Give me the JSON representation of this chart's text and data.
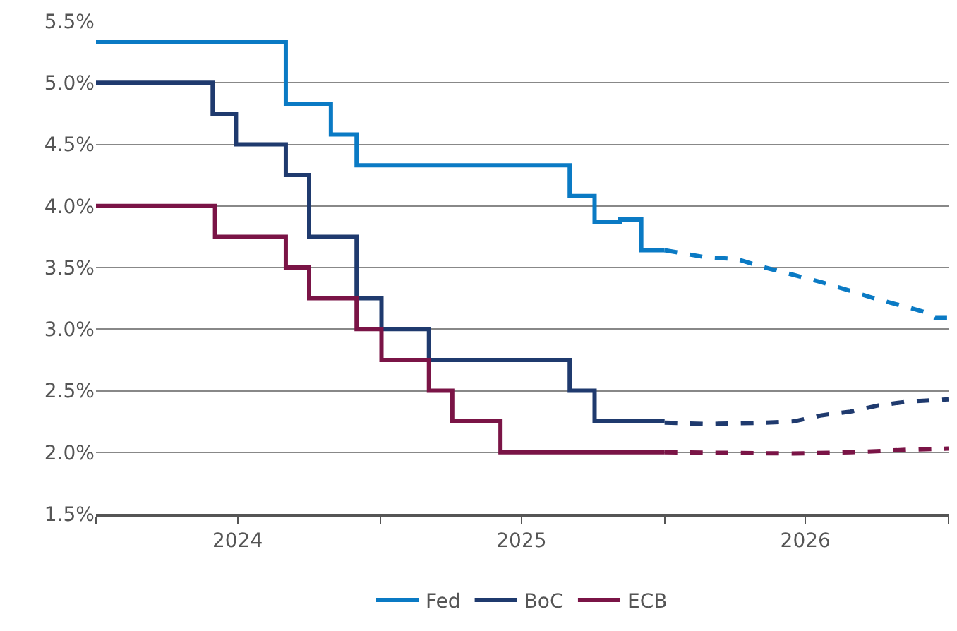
{
  "chart_data": {
    "type": "step",
    "series": [
      {
        "name": "Fed",
        "color": "#0a7ac4",
        "line_style": "solid",
        "x": [
          "2024-01-01",
          "2024-09-01",
          "2024-10-29",
          "2024-12-01",
          "2025-09-01",
          "2025-10-03",
          "2025-11-05",
          "2025-12-02",
          "2026-01-01"
        ],
        "values": [
          5.33,
          4.83,
          4.58,
          4.33,
          4.08,
          3.87,
          3.89,
          3.64,
          3.64
        ]
      },
      {
        "name": "BoC",
        "color": "#1f3a6e",
        "line_style": "solid",
        "x": [
          "2024-01-01",
          "2024-05-30",
          "2024-06-29",
          "2024-09-01",
          "2024-10-01",
          "2024-12-01",
          "2025-01-02",
          "2025-03-04",
          "2025-09-01",
          "2025-10-03",
          "2026-01-01"
        ],
        "values": [
          5.0,
          4.75,
          4.5,
          4.25,
          3.75,
          3.25,
          3.0,
          2.75,
          2.5,
          2.25,
          2.25
        ]
      },
      {
        "name": "ECB",
        "color": "#7a1446",
        "line_style": "solid",
        "x": [
          "2024-01-01",
          "2024-06-02",
          "2024-09-01",
          "2024-10-01",
          "2024-12-01",
          "2025-01-02",
          "2025-03-04",
          "2025-04-03",
          "2025-06-04",
          "2026-01-01"
        ],
        "values": [
          4.0,
          3.75,
          3.5,
          3.25,
          3.0,
          2.75,
          2.5,
          2.25,
          2.0,
          2.0
        ]
      },
      {
        "type": "line",
        "color": "#0a7ac4",
        "line_style": "dashed",
        "x": [
          "2026-01-01",
          "2026-02-26",
          "2026-04-03",
          "2026-05-10",
          "2026-06-16",
          "2026-07-22",
          "2026-08-28",
          "2026-10-03",
          "2026-11-08",
          "2026-12-06",
          "2026-12-15",
          "2027-01-01"
        ],
        "values": [
          3.64,
          3.58,
          3.57,
          3.5,
          3.44,
          3.38,
          3.31,
          3.24,
          3.18,
          3.13,
          3.09,
          3.09
        ]
      },
      {
        "type": "line",
        "color": "#1f3a6e",
        "line_style": "dashed",
        "x": [
          "2026-01-01",
          "2026-02-26",
          "2026-05-10",
          "2026-06-16",
          "2026-07-22",
          "2026-08-28",
          "2026-10-03",
          "2026-11-08",
          "2027-01-01"
        ],
        "values": [
          2.24,
          2.23,
          2.24,
          2.25,
          2.3,
          2.33,
          2.38,
          2.41,
          2.43
        ]
      },
      {
        "type": "line",
        "color": "#7a1446",
        "line_style": "dashed",
        "x": [
          "2026-01-01",
          "2026-06-16",
          "2026-08-28",
          "2026-11-08",
          "2027-01-01"
        ],
        "values": [
          2.0,
          1.99,
          2.0,
          2.02,
          2.03
        ]
      }
    ],
    "xlim": [
      "2024-01-01",
      "2027-01-01"
    ],
    "xticks": [
      {
        "value": "2024-01-01",
        "label": null
      },
      {
        "value": "2024-07-01",
        "label": "2024"
      },
      {
        "value": "2025-01-01",
        "label": null
      },
      {
        "value": "2025-07-01",
        "label": "2025"
      },
      {
        "value": "2026-01-01",
        "label": null
      },
      {
        "value": "2026-07-01",
        "label": "2026"
      },
      {
        "value": "2027-01-01",
        "label": null
      }
    ],
    "ylim": [
      1.5,
      5.5
    ],
    "yticks": [
      {
        "value": 1.5,
        "label": "1.5%"
      },
      {
        "value": 2.0,
        "label": "2.0%"
      },
      {
        "value": 2.5,
        "label": "2.5%"
      },
      {
        "value": 3.0,
        "label": "3.0%"
      },
      {
        "value": 3.5,
        "label": "3.5%"
      },
      {
        "value": 4.0,
        "label": "4.0%"
      },
      {
        "value": 4.5,
        "label": "4.5%"
      },
      {
        "value": 5.0,
        "label": "5.0%"
      },
      {
        "value": 5.5,
        "label": "5.5%"
      }
    ],
    "grid": "y",
    "legend": "bottom"
  }
}
